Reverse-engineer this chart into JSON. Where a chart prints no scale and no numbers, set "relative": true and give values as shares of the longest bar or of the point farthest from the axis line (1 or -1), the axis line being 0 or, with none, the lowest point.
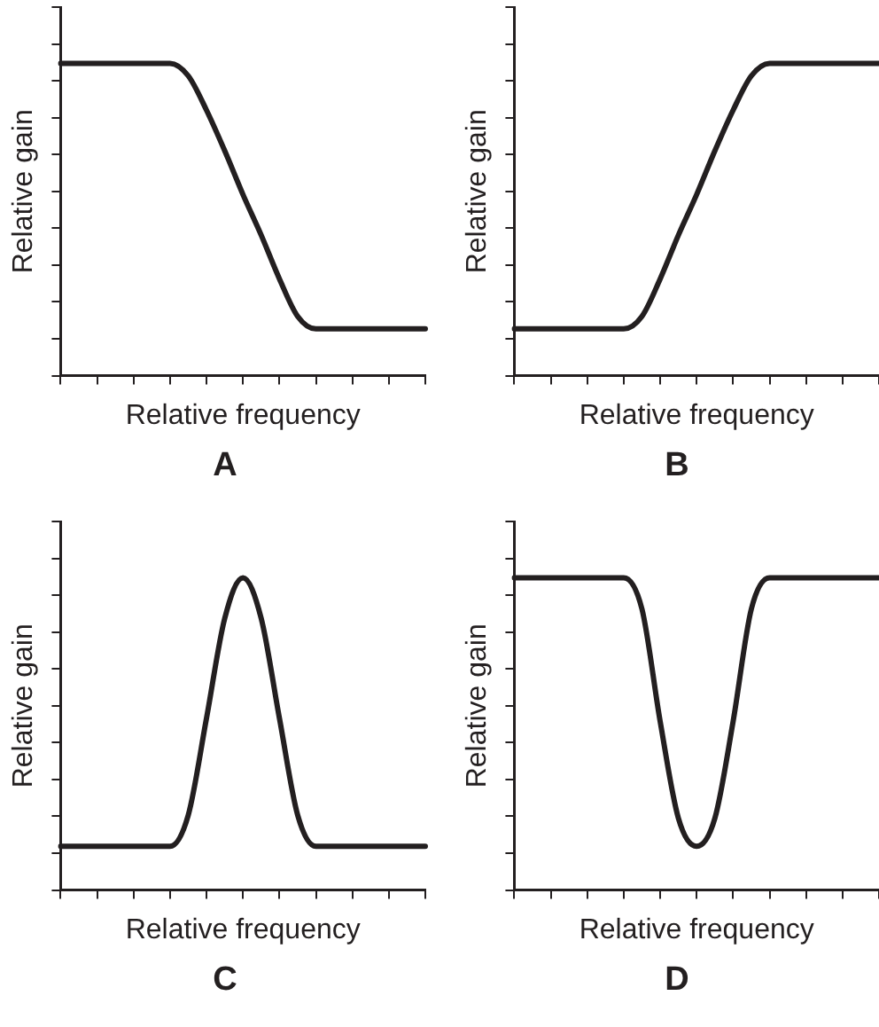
{
  "chart_data": [
    {
      "type": "line",
      "title": "A",
      "xlabel": "Relative frequency",
      "ylabel": "Relative gain",
      "relative": true,
      "tick_labels": false,
      "color": "#231f20",
      "categories": [
        null,
        null,
        null,
        null,
        null,
        null,
        null,
        null,
        null,
        null,
        null,
        null,
        null,
        null,
        null,
        null,
        null,
        null,
        null,
        null,
        null
      ],
      "values": [
        1,
        1,
        1,
        1,
        1,
        1,
        1,
        0.96,
        0.85,
        0.72,
        0.58,
        0.45,
        0.31,
        0.19,
        0.15,
        0.15,
        0.15,
        0.15,
        0.15,
        0.15,
        0.15
      ]
    },
    {
      "type": "line",
      "title": "B",
      "xlabel": "Relative frequency",
      "ylabel": "Relative gain",
      "relative": true,
      "tick_labels": false,
      "color": "#231f20",
      "categories": [
        null,
        null,
        null,
        null,
        null,
        null,
        null,
        null,
        null,
        null,
        null,
        null,
        null,
        null,
        null,
        null,
        null,
        null,
        null,
        null,
        null
      ],
      "values": [
        0.15,
        0.15,
        0.15,
        0.15,
        0.15,
        0.15,
        0.15,
        0.19,
        0.31,
        0.45,
        0.58,
        0.72,
        0.85,
        0.96,
        1,
        1,
        1,
        1,
        1,
        1,
        1
      ]
    },
    {
      "type": "line",
      "title": "C",
      "xlabel": "Relative frequency",
      "ylabel": "Relative gain",
      "relative": true,
      "tick_labels": false,
      "color": "#231f20",
      "categories": [
        null,
        null,
        null,
        null,
        null,
        null,
        null,
        null,
        null,
        null,
        null,
        null,
        null,
        null,
        null,
        null,
        null,
        null,
        null,
        null,
        null
      ],
      "values": [
        0.14,
        0.14,
        0.14,
        0.14,
        0.14,
        0.14,
        0.14,
        0.24,
        0.55,
        0.87,
        1,
        0.87,
        0.55,
        0.24,
        0.14,
        0.14,
        0.14,
        0.14,
        0.14,
        0.14,
        0.14
      ]
    },
    {
      "type": "line",
      "title": "D",
      "xlabel": "Relative frequency",
      "ylabel": "Relative gain",
      "relative": true,
      "tick_labels": false,
      "color": "#231f20",
      "categories": [
        null,
        null,
        null,
        null,
        null,
        null,
        null,
        null,
        null,
        null,
        null,
        null,
        null,
        null,
        null,
        null,
        null,
        null,
        null,
        null,
        null
      ],
      "values": [
        1,
        1,
        1,
        1,
        1,
        1,
        1,
        0.9,
        0.54,
        0.23,
        0.14,
        0.23,
        0.54,
        0.9,
        1,
        1,
        1,
        1,
        1,
        1,
        1
      ]
    }
  ]
}
